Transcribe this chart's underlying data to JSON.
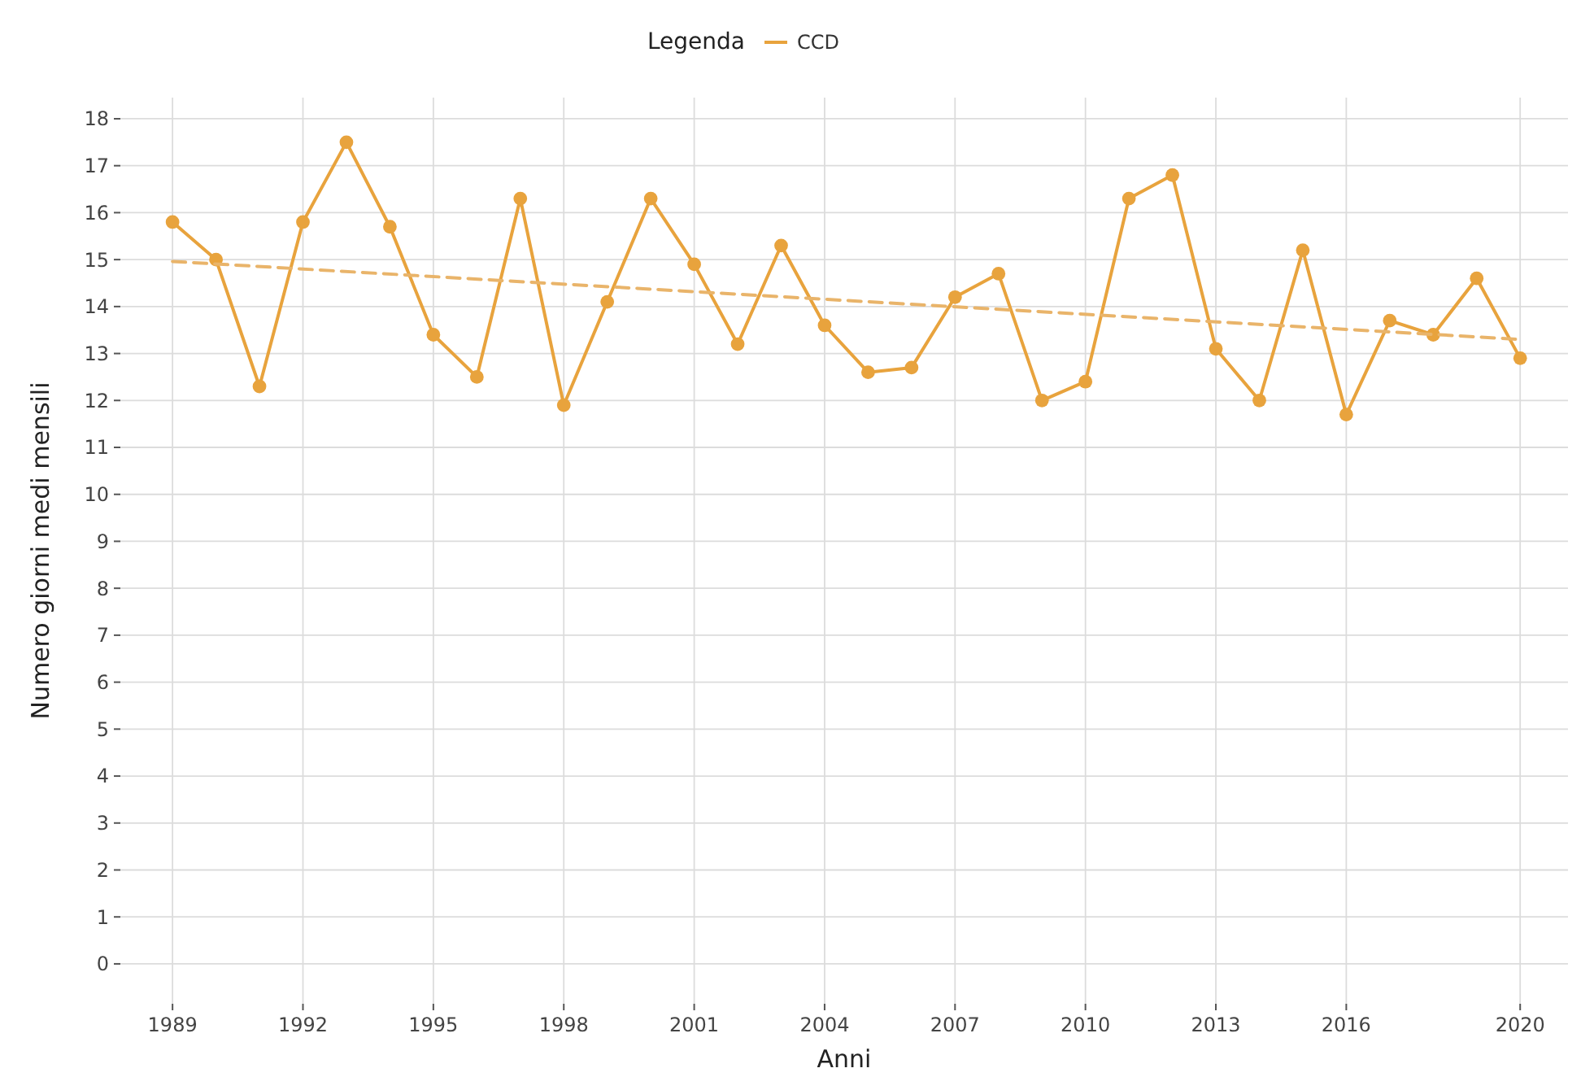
{
  "chart_data": {
    "type": "line",
    "xlabel": "Anni",
    "ylabel": "Numero giorni medi mensili",
    "legend_title": "Legenda",
    "legend": "top",
    "grid": true,
    "x": [
      1989,
      1990,
      1991,
      1992,
      1993,
      1994,
      1995,
      1996,
      1997,
      1998,
      1999,
      2000,
      2001,
      2002,
      2003,
      2004,
      2005,
      2006,
      2007,
      2008,
      2009,
      2010,
      2011,
      2012,
      2013,
      2014,
      2015,
      2016,
      2017,
      2018,
      2019,
      2020
    ],
    "xlim": [
      1987.8,
      2021.1
    ],
    "xticks": [
      1989,
      1992,
      1995,
      1998,
      2001,
      2004,
      2007,
      2010,
      2013,
      2016,
      2020
    ],
    "ylim": [
      -0.85,
      18.45
    ],
    "yticks": [
      0,
      1,
      2,
      3,
      4,
      5,
      6,
      7,
      8,
      9,
      10,
      11,
      12,
      13,
      14,
      15,
      16,
      17,
      18
    ],
    "series": [
      {
        "name": "CCD",
        "color": "#e8a33d",
        "marker": "circle",
        "line_style": "solid",
        "values": [
          15.8,
          15.0,
          12.3,
          15.8,
          17.5,
          15.7,
          13.4,
          12.5,
          16.3,
          11.9,
          14.1,
          16.3,
          14.9,
          13.2,
          15.3,
          13.6,
          12.6,
          12.7,
          14.2,
          14.7,
          12.0,
          12.4,
          16.3,
          16.8,
          13.1,
          12.0,
          15.2,
          11.7,
          13.7,
          13.4,
          14.6,
          12.9
        ]
      },
      {
        "color": "#e9b46a",
        "marker": "none",
        "line_style": "dashed",
        "x": [
          1989,
          2020
        ],
        "values": [
          14.96,
          13.3
        ]
      }
    ]
  }
}
